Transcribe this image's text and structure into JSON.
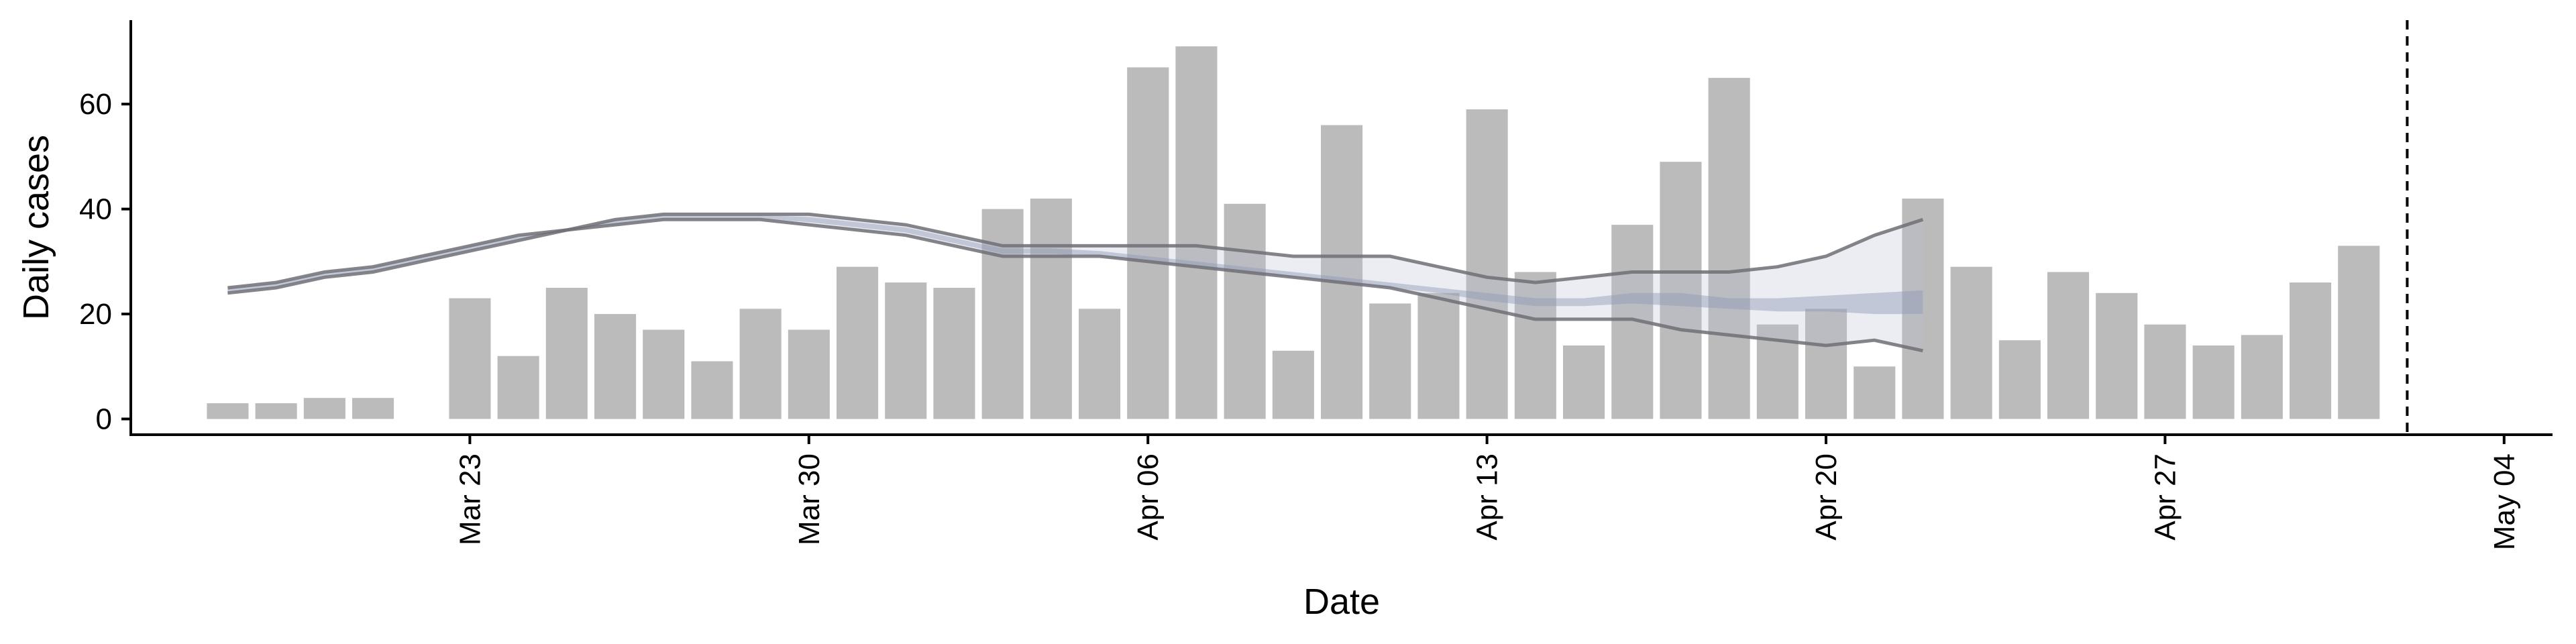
{
  "chart_data": {
    "type": "bar",
    "title": "",
    "xlabel": "Date",
    "ylabel": "Daily cases",
    "ylim": [
      -3,
      76
    ],
    "yticks": [
      0,
      20,
      40,
      60
    ],
    "xticks": [
      "2020-03-23",
      "2020-03-30",
      "2020-04-06",
      "2020-04-13",
      "2020-04-20",
      "2020-04-27",
      "2020-05-04"
    ],
    "xtick_labels": [
      "Mar 23",
      "Mar 30",
      "Apr 06",
      "Apr 13",
      "Apr 20",
      "Apr 27",
      "May 04"
    ],
    "xlim": [
      "2020-03-16",
      "2020-05-05"
    ],
    "vline_date": "2020-05-02",
    "grid": false,
    "colors": {
      "bars": "#bbbbbb",
      "band_outer": "#b8bfd0",
      "band_inner": "#8e9ab6",
      "line": "#6e6e76"
    },
    "bars": {
      "start_date": "2020-03-18",
      "values": [
        3,
        3,
        4,
        4,
        0,
        23,
        12,
        25,
        20,
        17,
        11,
        21,
        17,
        29,
        26,
        25,
        40,
        42,
        21,
        67,
        71,
        41,
        13,
        56,
        22,
        24,
        59,
        28,
        14,
        37,
        49,
        65,
        18,
        21,
        10,
        42,
        29,
        15,
        28,
        24,
        18,
        14,
        16,
        26,
        33
      ]
    },
    "estimate": {
      "start_date": "2020-03-18",
      "upper": [
        25,
        26,
        28,
        29,
        31,
        33,
        35,
        36,
        38,
        39,
        39,
        39,
        39,
        38,
        37,
        35,
        33,
        33,
        33,
        33,
        33,
        32,
        31,
        31,
        31,
        29,
        27,
        26,
        27,
        28,
        28,
        28,
        29,
        31,
        35,
        38
      ],
      "lower": [
        24,
        25,
        27,
        28,
        30,
        32,
        34,
        36,
        37,
        38,
        38,
        38,
        37,
        36,
        35,
        33,
        31,
        31,
        31,
        30,
        29,
        28,
        27,
        26,
        25,
        23,
        21,
        19,
        19,
        19,
        17,
        16,
        15,
        14,
        15,
        13
      ],
      "inner_upper": [
        24.8,
        25.8,
        27.8,
        28.8,
        30.8,
        32.8,
        34.8,
        36,
        37.8,
        38.8,
        38.8,
        38.8,
        38.5,
        37.5,
        36.5,
        34.5,
        32.5,
        32.5,
        32,
        31,
        30,
        29,
        28,
        27,
        26,
        25,
        24,
        23,
        23,
        24,
        24,
        23,
        23,
        23.5,
        24,
        24.5
      ],
      "inner_lower": [
        24.2,
        25.2,
        27.2,
        28.2,
        30.2,
        32.2,
        34.2,
        36,
        37.2,
        38.2,
        38.2,
        38.2,
        37.5,
        36.5,
        35.5,
        33.5,
        31.5,
        31.5,
        31,
        30,
        29,
        28,
        27,
        26,
        25,
        24,
        22.5,
        21.5,
        21.5,
        22,
        21.5,
        21,
        20.5,
        20.5,
        20,
        20
      ]
    }
  }
}
